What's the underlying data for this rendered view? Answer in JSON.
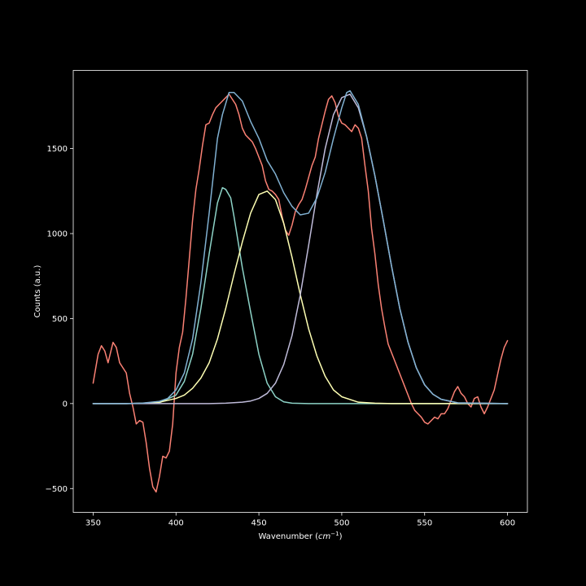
{
  "chart_data": {
    "type": "line",
    "xlabel": "Wavenumber (cm⁻¹)",
    "ylabel": "Counts (a.u.)",
    "xlim": [
      338,
      612
    ],
    "ylim": [
      -640,
      1960
    ],
    "xticks": [
      350,
      400,
      450,
      500,
      550,
      600
    ],
    "yticks": [
      -500,
      0,
      500,
      1000,
      1500
    ],
    "background": "#000000",
    "grid": false,
    "legend": "none",
    "series": [
      {
        "color": "#fa8174",
        "kind": "measured",
        "x": [
          350,
          353,
          355,
          357,
          359,
          360,
          362,
          364,
          366,
          368,
          370,
          372,
          374,
          376,
          378,
          380,
          382,
          384,
          386,
          388,
          390,
          392,
          394,
          396,
          398,
          400,
          402,
          404,
          406,
          408,
          410,
          412,
          414,
          416,
          418,
          420,
          422,
          424,
          426,
          428,
          430,
          432,
          434,
          436,
          438,
          440,
          442,
          444,
          446,
          448,
          450,
          452,
          454,
          456,
          458,
          460,
          462,
          464,
          466,
          468,
          470,
          472,
          474,
          476,
          478,
          480,
          482,
          484,
          486,
          488,
          490,
          492,
          494,
          496,
          498,
          500,
          502,
          504,
          506,
          508,
          510,
          512,
          514,
          516,
          518,
          520,
          522,
          524,
          526,
          528,
          530,
          532,
          534,
          536,
          538,
          540,
          542,
          544,
          546,
          548,
          550,
          552,
          554,
          556,
          558,
          560,
          562,
          564,
          566,
          568,
          570,
          572,
          574,
          576,
          578,
          580,
          582,
          584,
          586,
          588,
          590,
          592,
          594,
          596,
          598,
          600
        ],
        "y": [
          120,
          290,
          340,
          310,
          240,
          280,
          360,
          330,
          240,
          210,
          180,
          60,
          -20,
          -120,
          -100,
          -110,
          -230,
          -380,
          -490,
          -520,
          -430,
          -310,
          -320,
          -280,
          -120,
          180,
          330,
          420,
          620,
          850,
          1080,
          1260,
          1380,
          1520,
          1640,
          1650,
          1700,
          1740,
          1760,
          1780,
          1800,
          1820,
          1790,
          1760,
          1700,
          1620,
          1580,
          1560,
          1540,
          1500,
          1450,
          1400,
          1310,
          1260,
          1250,
          1230,
          1200,
          1100,
          1020,
          990,
          1050,
          1130,
          1170,
          1200,
          1260,
          1330,
          1400,
          1450,
          1560,
          1640,
          1720,
          1790,
          1810,
          1770,
          1690,
          1650,
          1640,
          1620,
          1600,
          1640,
          1620,
          1560,
          1400,
          1250,
          1030,
          880,
          700,
          560,
          450,
          350,
          300,
          250,
          200,
          150,
          100,
          50,
          0,
          -40,
          -60,
          -80,
          -110,
          -120,
          -100,
          -80,
          -90,
          -60,
          -60,
          -30,
          20,
          70,
          100,
          60,
          40,
          0,
          -20,
          30,
          40,
          -20,
          -60,
          -20,
          30,
          80,
          170,
          260,
          330,
          370
        ]
      },
      {
        "color": "#8dd3c7",
        "kind": "fitted-peak",
        "x": [
          350,
          370,
          380,
          390,
          400,
          405,
          410,
          415,
          420,
          425,
          428,
          430,
          433,
          435,
          440,
          445,
          450,
          455,
          460,
          465,
          470,
          480,
          500,
          600
        ],
        "y": [
          0,
          0,
          1,
          5,
          50,
          130,
          290,
          560,
          880,
          1180,
          1270,
          1260,
          1210,
          1100,
          800,
          540,
          290,
          120,
          40,
          10,
          2,
          0,
          0,
          0
        ]
      },
      {
        "color": "#feffb3",
        "kind": "fitted-peak",
        "x": [
          350,
          370,
          380,
          390,
          400,
          405,
          410,
          415,
          420,
          425,
          430,
          435,
          440,
          445,
          450,
          455,
          460,
          465,
          470,
          475,
          480,
          485,
          490,
          495,
          500,
          510,
          520,
          530,
          600
        ],
        "y": [
          0,
          0,
          2,
          8,
          30,
          50,
          90,
          150,
          240,
          380,
          560,
          760,
          950,
          1120,
          1230,
          1250,
          1200,
          1060,
          860,
          640,
          440,
          280,
          160,
          80,
          40,
          8,
          2,
          0,
          0
        ],
        "note": "peak ~1255 at 452"
      },
      {
        "color": "#bfbbd9",
        "kind": "fitted-peak",
        "x": [
          350,
          420,
          430,
          440,
          445,
          450,
          455,
          460,
          465,
          470,
          475,
          480,
          485,
          490,
          495,
          500,
          505,
          510,
          515,
          520,
          525,
          530,
          535,
          540,
          545,
          550,
          555,
          560,
          570,
          600
        ],
        "y": [
          0,
          0,
          2,
          8,
          15,
          30,
          60,
          120,
          230,
          400,
          640,
          930,
          1230,
          1500,
          1700,
          1800,
          1820,
          1740,
          1570,
          1340,
          1080,
          810,
          560,
          360,
          210,
          110,
          55,
          25,
          4,
          0
        ],
        "note": "peak ~1830 at 503"
      },
      {
        "color": "#81b1d2",
        "kind": "fitted-sum",
        "x": [
          350,
          370,
          380,
          390,
          395,
          400,
          405,
          410,
          415,
          420,
          425,
          428,
          432,
          435,
          440,
          445,
          450,
          455,
          460,
          465,
          470,
          475,
          480,
          485,
          490,
          495,
          500,
          503,
          505,
          510,
          515,
          520,
          525,
          530,
          535,
          540,
          545,
          550,
          555,
          560,
          570,
          600
        ],
        "y": [
          0,
          0,
          3,
          13,
          30,
          80,
          180,
          380,
          710,
          1120,
          1560,
          1700,
          1830,
          1830,
          1780,
          1660,
          1560,
          1430,
          1350,
          1240,
          1160,
          1110,
          1120,
          1210,
          1360,
          1560,
          1740,
          1830,
          1840,
          1760,
          1570,
          1340,
          1080,
          810,
          560,
          360,
          210,
          110,
          55,
          25,
          4,
          0
        ]
      }
    ]
  }
}
